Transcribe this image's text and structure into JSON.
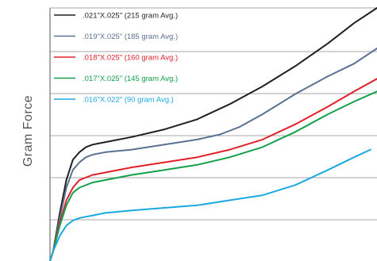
{
  "chart_data": {
    "type": "line",
    "title": "",
    "xlabel": "",
    "ylabel": "Gram Force",
    "grid": "horizontal",
    "legend_position": "top-left",
    "xlim": [
      0,
      100
    ],
    "ylim": [
      0,
      100
    ],
    "series": [
      {
        "name": ".021\"X.025\" (215 gram Avg.)",
        "color": "#231f20",
        "points": [
          [
            0,
            0
          ],
          [
            1,
            4
          ],
          [
            3,
            19
          ],
          [
            5,
            32
          ],
          [
            7,
            40
          ],
          [
            9,
            43
          ],
          [
            11,
            45
          ],
          [
            13,
            46
          ],
          [
            17,
            47
          ],
          [
            25,
            49
          ],
          [
            35,
            52
          ],
          [
            45,
            56
          ],
          [
            55,
            62
          ],
          [
            65,
            69
          ],
          [
            75,
            77
          ],
          [
            85,
            86
          ],
          [
            93,
            94
          ],
          [
            100,
            100
          ]
        ]
      },
      {
        "name": ".019\"X.025\" (185 gram Avg.)",
        "color": "#5a7192",
        "points": [
          [
            0,
            0
          ],
          [
            1,
            4
          ],
          [
            3,
            17
          ],
          [
            5,
            29
          ],
          [
            7,
            36
          ],
          [
            9,
            39
          ],
          [
            11,
            41
          ],
          [
            13,
            42
          ],
          [
            17,
            43
          ],
          [
            25,
            44
          ],
          [
            35,
            46
          ],
          [
            45,
            48
          ],
          [
            52,
            50
          ],
          [
            58,
            53
          ],
          [
            65,
            58
          ],
          [
            75,
            66
          ],
          [
            85,
            73
          ],
          [
            93,
            78
          ],
          [
            100,
            84
          ]
        ]
      },
      {
        "name": ".018\"X.025\" (160 gram Avg.)",
        "color": "#e2202a",
        "points": [
          [
            0,
            0
          ],
          [
            1,
            4
          ],
          [
            3,
            15
          ],
          [
            5,
            24
          ],
          [
            7,
            29
          ],
          [
            9,
            32
          ],
          [
            13,
            34
          ],
          [
            17,
            35
          ],
          [
            25,
            37
          ],
          [
            35,
            39
          ],
          [
            45,
            41
          ],
          [
            55,
            44
          ],
          [
            65,
            48
          ],
          [
            75,
            54
          ],
          [
            85,
            61
          ],
          [
            93,
            67
          ],
          [
            100,
            72
          ]
        ]
      },
      {
        "name": ".017\"X.025\" (145 gram Avg.)",
        "color": "#13a04a",
        "points": [
          [
            0,
            0
          ],
          [
            1,
            4
          ],
          [
            3,
            14
          ],
          [
            5,
            22
          ],
          [
            7,
            27
          ],
          [
            9,
            29
          ],
          [
            13,
            31
          ],
          [
            17,
            32
          ],
          [
            25,
            34
          ],
          [
            35,
            36
          ],
          [
            45,
            38
          ],
          [
            55,
            41
          ],
          [
            65,
            45
          ],
          [
            75,
            51
          ],
          [
            85,
            58
          ],
          [
            93,
            63
          ],
          [
            100,
            67
          ]
        ]
      },
      {
        "name": ".016\"X.022\" (90 gram Avg.)",
        "color": "#1ca9e0",
        "points": [
          [
            0,
            0
          ],
          [
            1,
            4
          ],
          [
            3,
            10
          ],
          [
            5,
            14
          ],
          [
            7,
            16
          ],
          [
            9,
            17
          ],
          [
            13,
            18
          ],
          [
            17,
            19
          ],
          [
            25,
            20
          ],
          [
            35,
            21
          ],
          [
            45,
            22
          ],
          [
            55,
            24
          ],
          [
            65,
            26
          ],
          [
            75,
            30
          ],
          [
            85,
            36
          ],
          [
            93,
            41
          ],
          [
            98,
            44
          ]
        ]
      }
    ]
  }
}
